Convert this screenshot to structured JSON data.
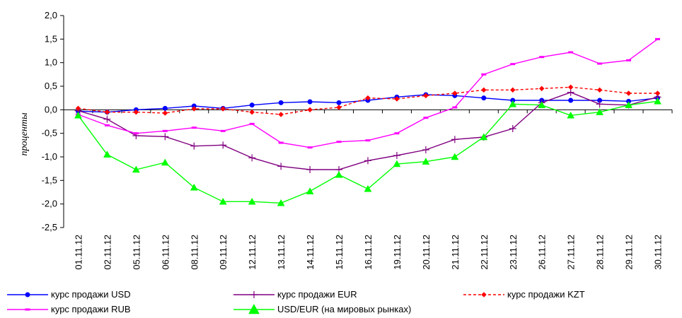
{
  "chart_data": {
    "type": "line",
    "ylabel": "проценты",
    "ylim": [
      -2.5,
      2.0
    ],
    "yticks": [
      "2,0",
      "1,5",
      "1,0",
      "0,5",
      "0,0",
      "-0,5",
      "-1,0",
      "-1,5",
      "-2,0",
      "-2,5"
    ],
    "ytick_values": [
      2.0,
      1.5,
      1.0,
      0.5,
      0.0,
      -0.5,
      -1.0,
      -1.5,
      -2.0,
      -2.5
    ],
    "categories": [
      "01.11.12",
      "02.11.12",
      "05.11.12",
      "06.11.12",
      "08.11.12",
      "09.11.12",
      "12.11.12",
      "13.11.12",
      "14.11.12",
      "15.11.12",
      "16.11.12",
      "19.11.12",
      "20.11.12",
      "21.11.12",
      "22.11.12",
      "23.11.12",
      "26.11.12",
      "27.11.12",
      "28.11.12",
      "29.11.12",
      "30.11.12"
    ],
    "legend_position": "bottom",
    "series": [
      {
        "name": "курс продажи USD",
        "color": "#0000ff",
        "dash": "solid",
        "marker": "circle",
        "values": [
          -0.03,
          -0.05,
          0.0,
          0.03,
          0.08,
          0.03,
          0.1,
          0.15,
          0.17,
          0.15,
          0.2,
          0.27,
          0.32,
          0.3,
          0.25,
          0.2,
          0.2,
          0.2,
          0.2,
          0.18,
          0.25
        ]
      },
      {
        "name": "курс продажи EUR",
        "color": "#800080",
        "dash": "solid",
        "marker": "plus",
        "values": [
          -0.02,
          -0.2,
          -0.55,
          -0.57,
          -0.77,
          -0.75,
          -1.02,
          -1.2,
          -1.27,
          -1.27,
          -1.08,
          -0.97,
          -0.85,
          -0.63,
          -0.58,
          -0.4,
          0.15,
          0.37,
          0.12,
          0.1,
          0.27
        ]
      },
      {
        "name": "курс продажи KZT",
        "color": "#ff0000",
        "dash": "dashed",
        "marker": "diamond",
        "values": [
          0.03,
          -0.05,
          -0.05,
          -0.07,
          0.02,
          0.02,
          -0.05,
          -0.1,
          0.0,
          0.05,
          0.25,
          0.23,
          0.3,
          0.35,
          0.42,
          0.42,
          0.45,
          0.48,
          0.42,
          0.35,
          0.35
        ]
      },
      {
        "name": "курс продажи RUB",
        "color": "#ff00ff",
        "dash": "solid",
        "marker": "dash",
        "values": [
          -0.1,
          -0.33,
          -0.5,
          -0.45,
          -0.38,
          -0.45,
          -0.3,
          -0.7,
          -0.8,
          -0.68,
          -0.65,
          -0.5,
          -0.17,
          0.05,
          0.75,
          0.97,
          1.12,
          1.22,
          0.98,
          1.05,
          1.5
        ]
      },
      {
        "name": "USD/EUR (на мировых рынках)",
        "color": "#00ff00",
        "dash": "solid",
        "marker": "triangle",
        "values": [
          -0.12,
          -0.95,
          -1.27,
          -1.12,
          -1.65,
          -1.95,
          -1.95,
          -1.98,
          -1.73,
          -1.38,
          -1.68,
          -1.15,
          -1.1,
          -1.0,
          -0.58,
          0.12,
          0.1,
          -0.12,
          -0.05,
          0.1,
          0.18
        ]
      }
    ]
  }
}
